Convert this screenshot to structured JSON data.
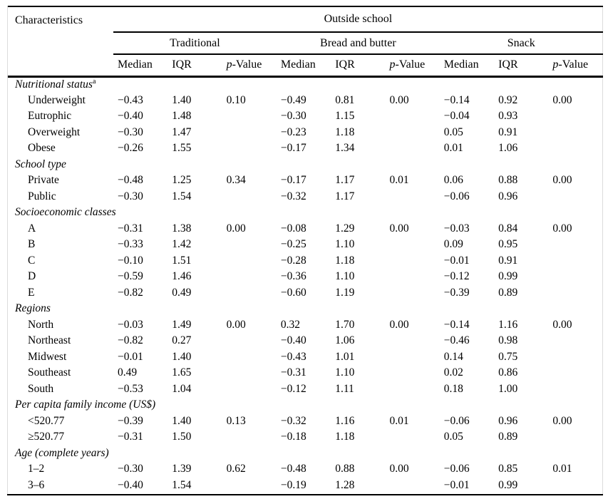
{
  "table": {
    "characteristics_header": "Characteristics",
    "outside_school_header": "Outside school",
    "group_headers": [
      "Traditional",
      "Bread and butter",
      "Snack"
    ],
    "measure_headers": [
      "Median",
      "IQR",
      "p-Value"
    ],
    "sections": [
      {
        "title": "Nutritional status",
        "superscript": "a",
        "rows": [
          {
            "label": "Underweight",
            "values": [
              "−0.43",
              "1.40",
              "0.10",
              "−0.49",
              "0.81",
              "0.00",
              "−0.14",
              "0.92",
              "0.00"
            ]
          },
          {
            "label": "Eutrophic",
            "values": [
              "−0.40",
              "1.48",
              "",
              "−0.30",
              "1.15",
              "",
              "−0.04",
              "0.93",
              ""
            ]
          },
          {
            "label": "Overweight",
            "values": [
              "−0.30",
              "1.47",
              "",
              "−0.23",
              "1.18",
              "",
              "0.05",
              "0.91",
              ""
            ]
          },
          {
            "label": "Obese",
            "values": [
              "−0.26",
              "1.55",
              "",
              "−0.17",
              "1.34",
              "",
              "0.01",
              "1.06",
              ""
            ]
          }
        ]
      },
      {
        "title": "School type",
        "superscript": "",
        "rows": [
          {
            "label": "Private",
            "values": [
              "−0.48",
              "1.25",
              "0.34",
              "−0.17",
              "1.17",
              "0.01",
              "0.06",
              "0.88",
              "0.00"
            ]
          },
          {
            "label": "Public",
            "values": [
              "−0.30",
              "1.54",
              "",
              "−0.32",
              "1.17",
              "",
              "−0.06",
              "0.96",
              ""
            ]
          }
        ]
      },
      {
        "title": "Socioeconomic classes",
        "superscript": "",
        "rows": [
          {
            "label": "A",
            "values": [
              "−0.31",
              "1.38",
              "0.00",
              "−0.08",
              "1.29",
              "0.00",
              "−0.03",
              "0.84",
              "0.00"
            ]
          },
          {
            "label": "B",
            "values": [
              "−0.33",
              "1.42",
              "",
              "−0.25",
              "1.10",
              "",
              "0.09",
              "0.95",
              ""
            ]
          },
          {
            "label": "C",
            "values": [
              "−0.10",
              "1.51",
              "",
              "−0.28",
              "1.18",
              "",
              "−0.01",
              "0.91",
              ""
            ]
          },
          {
            "label": "D",
            "values": [
              "−0.59",
              "1.46",
              "",
              "−0.36",
              "1.10",
              "",
              "−0.12",
              "0.99",
              ""
            ]
          },
          {
            "label": "E",
            "values": [
              "−0.82",
              "0.49",
              "",
              "−0.60",
              "1.19",
              "",
              "−0.39",
              "0.89",
              ""
            ]
          }
        ]
      },
      {
        "title": "Regions",
        "superscript": "",
        "rows": [
          {
            "label": "North",
            "values": [
              "−0.03",
              "1.49",
              "0.00",
              "0.32",
              "1.70",
              "0.00",
              "−0.14",
              "1.16",
              "0.00"
            ]
          },
          {
            "label": "Northeast",
            "values": [
              "−0.82",
              "0.27",
              "",
              "−0.40",
              "1.06",
              "",
              "−0.46",
              "0.98",
              ""
            ]
          },
          {
            "label": "Midwest",
            "values": [
              "−0.01",
              "1.40",
              "",
              "−0.43",
              "1.01",
              "",
              "0.14",
              "0.75",
              ""
            ]
          },
          {
            "label": "Southeast",
            "values": [
              "0.49",
              "1.65",
              "",
              "−0.31",
              "1.10",
              "",
              "0.02",
              "0.86",
              ""
            ]
          },
          {
            "label": "South",
            "values": [
              "−0.53",
              "1.04",
              "",
              "−0.12",
              "1.11",
              "",
              "0.18",
              "1.00",
              ""
            ]
          }
        ]
      },
      {
        "title": "Per capita family income (US$)",
        "superscript": "",
        "rows": [
          {
            "label": "<520.77",
            "values": [
              "−0.39",
              "1.40",
              "0.13",
              "−0.32",
              "1.16",
              "0.01",
              "−0.06",
              "0.96",
              "0.00"
            ]
          },
          {
            "label": "≥520.77",
            "values": [
              "−0.31",
              "1.50",
              "",
              "−0.18",
              "1.18",
              "",
              "0.05",
              "0.89",
              ""
            ]
          }
        ]
      },
      {
        "title": "Age (complete years)",
        "superscript": "",
        "rows": [
          {
            "label": "1–2",
            "values": [
              "−0.30",
              "1.39",
              "0.62",
              "−0.48",
              "0.88",
              "0.00",
              "−0.06",
              "0.85",
              "0.01"
            ]
          },
          {
            "label": "3–6",
            "values": [
              "−0.40",
              "1.54",
              "",
              "−0.19",
              "1.28",
              "",
              "−0.01",
              "0.99",
              ""
            ]
          }
        ]
      }
    ]
  }
}
